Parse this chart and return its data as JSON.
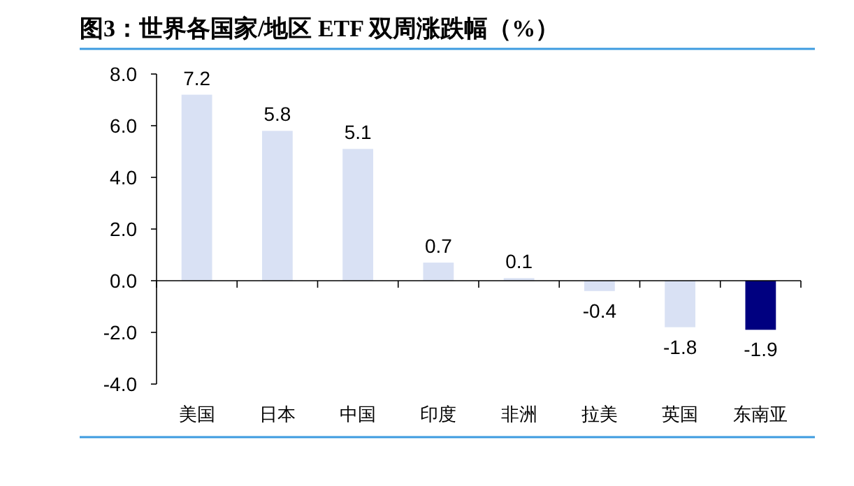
{
  "chart_data": {
    "type": "bar",
    "title": "图3：世界各国家/地区 ETF 双周涨跌幅（%）",
    "categories": [
      "美国",
      "日本",
      "中国",
      "印度",
      "非洲",
      "拉美",
      "英国",
      "东南亚"
    ],
    "values": [
      7.2,
      5.8,
      5.1,
      0.7,
      0.1,
      -0.4,
      -1.8,
      -1.9
    ],
    "colors": [
      "#d9e1f4",
      "#d9e1f4",
      "#d9e1f4",
      "#d9e1f4",
      "#d9e1f4",
      "#d9e1f4",
      "#d9e1f4",
      "#000080"
    ],
    "value_labels": [
      "7.2",
      "5.8",
      "5.1",
      "0.7",
      "0.1",
      "-0.4",
      "-1.8",
      "-1.9"
    ],
    "ylim": [
      -4,
      8
    ],
    "yticks": [
      {
        "value": -4,
        "label": "-4.0"
      },
      {
        "value": -2,
        "label": "-2.0"
      },
      {
        "value": 0,
        "label": "0.0"
      },
      {
        "value": 2,
        "label": "2.0"
      },
      {
        "value": 4,
        "label": "4.0"
      },
      {
        "value": 6,
        "label": "6.0"
      },
      {
        "value": 8,
        "label": "8.0"
      }
    ],
    "ylabel": null
  }
}
